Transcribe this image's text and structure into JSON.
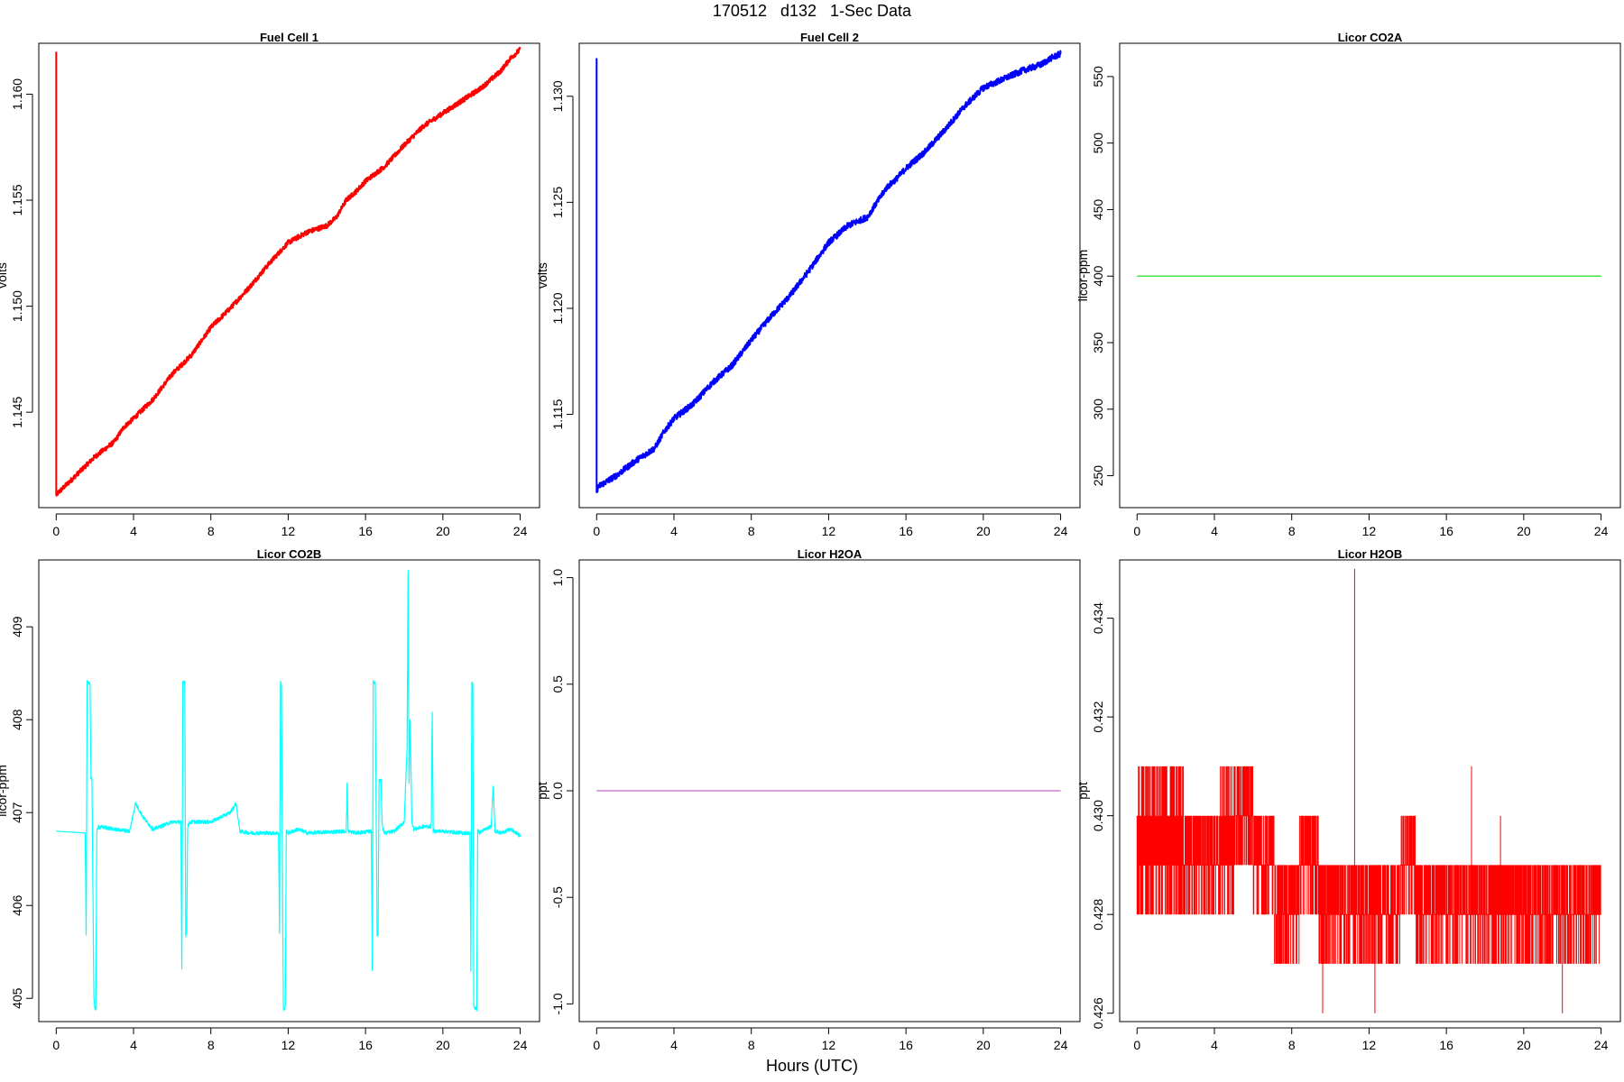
{
  "title": "170512   d132   1-Sec Data",
  "x_axis_label": "Hours (UTC)",
  "chart_data": [
    {
      "id": "fuel-cell-1",
      "type": "line",
      "title": "Fuel Cell 1",
      "xlabel": "",
      "ylabel": "volts",
      "color": "#ff0000",
      "xlim": [
        -0.9,
        25.0
      ],
      "ylim": [
        1.1405,
        1.1624
      ],
      "xticks": [
        0,
        4,
        8,
        12,
        16,
        20,
        24
      ],
      "yticks": [
        1.145,
        1.15,
        1.155,
        1.16
      ],
      "ytick_labels": [
        "1.145",
        "1.150",
        "1.155",
        "1.160"
      ],
      "noise": 0.00012,
      "series": [
        {
          "x": [
            0,
            0,
            0.1,
            1,
            2,
            3,
            3.5,
            4,
            5,
            6,
            7,
            8,
            9,
            10,
            11,
            12,
            13,
            14,
            14.5,
            15,
            15.5,
            16,
            17,
            18,
            19,
            20,
            21,
            22,
            23,
            23.5,
            24
          ],
          "y": [
            1.162,
            1.1411,
            1.1412,
            1.142,
            1.1429,
            1.1436,
            1.1443,
            1.1447,
            1.1456,
            1.1468,
            1.1477,
            1.149,
            1.1499,
            1.1509,
            1.152,
            1.153,
            1.1535,
            1.1538,
            1.1542,
            1.155,
            1.1554,
            1.1559,
            1.1566,
            1.1576,
            1.1585,
            1.1591,
            1.1597,
            1.1603,
            1.1611,
            1.1617,
            1.1621
          ]
        }
      ]
    },
    {
      "id": "fuel-cell-2",
      "type": "line",
      "title": "Fuel Cell 2",
      "xlabel": "",
      "ylabel": "volts",
      "color": "#0000ff",
      "xlim": [
        -0.9,
        25.0
      ],
      "ylim": [
        1.1106,
        1.1325
      ],
      "xticks": [
        0,
        4,
        8,
        12,
        16,
        20,
        24
      ],
      "yticks": [
        1.115,
        1.12,
        1.125,
        1.13
      ],
      "ytick_labels": [
        "1.115",
        "1.120",
        "1.125",
        "1.130"
      ],
      "noise": 0.00015,
      "series": [
        {
          "x": [
            0,
            0,
            0.1,
            1,
            2,
            3,
            3.5,
            4,
            5,
            6,
            7,
            8,
            9,
            10,
            11,
            12,
            13,
            14,
            14.5,
            15,
            15.5,
            16,
            17,
            18,
            19,
            20,
            21,
            22,
            23,
            23.5,
            24
          ],
          "y": [
            1.1318,
            1.1114,
            1.1116,
            1.1121,
            1.1128,
            1.1134,
            1.1142,
            1.1148,
            1.1155,
            1.1165,
            1.1173,
            1.1185,
            1.1196,
            1.1206,
            1.1218,
            1.1231,
            1.1239,
            1.1243,
            1.125,
            1.1257,
            1.1261,
            1.1266,
            1.1274,
            1.1284,
            1.1295,
            1.1304,
            1.1308,
            1.1312,
            1.1315,
            1.1318,
            1.132
          ]
        }
      ]
    },
    {
      "id": "licor-co2a",
      "type": "line",
      "title": "Licor CO2A",
      "xlabel": "",
      "ylabel": "licor-ppm",
      "color": "#00dd00",
      "xlim": [
        -0.9,
        25.0
      ],
      "ylim": [
        226,
        575
      ],
      "xticks": [
        0,
        4,
        8,
        12,
        16,
        20,
        24
      ],
      "yticks": [
        250,
        300,
        350,
        400,
        450,
        500,
        550
      ],
      "ytick_labels": [
        "250",
        "300",
        "350",
        "400",
        "450",
        "500",
        "550"
      ],
      "noise": 0,
      "series": [
        {
          "x": [
            0,
            24
          ],
          "y": [
            400,
            400
          ]
        }
      ]
    },
    {
      "id": "licor-co2b",
      "type": "line",
      "title": "Licor CO2B",
      "xlabel": "",
      "ylabel": "licor-ppm",
      "color": "#00ffff",
      "xlim": [
        -0.9,
        25.0
      ],
      "ylim": [
        404.75,
        409.72
      ],
      "xticks": [
        0,
        4,
        8,
        12,
        16,
        20,
        24
      ],
      "yticks": [
        405,
        406,
        407,
        408,
        409
      ],
      "ytick_labels": [
        "405",
        "406",
        "407",
        "408",
        "409"
      ],
      "noise": 0.02,
      "series": [
        {
          "x": [
            0,
            1.5,
            1.55,
            1.6,
            1.65,
            1.75,
            1.8,
            1.85,
            1.95,
            2.0,
            2.05,
            2.1,
            2.2,
            2.25,
            2.3,
            3,
            3.8,
            4.1,
            4.5,
            5,
            6,
            6.45,
            6.5,
            6.55,
            6.6,
            6.65,
            6.7,
            6.75,
            6.8,
            6.85,
            7,
            8,
            9,
            9.3,
            9.5,
            10,
            11.5,
            11.55,
            11.6,
            11.65,
            11.75,
            11.8,
            11.85,
            11.9,
            12.0,
            12.5,
            13,
            15.0,
            15.05,
            15.1,
            15.5,
            16.3,
            16.35,
            16.4,
            16.5,
            16.6,
            16.65,
            16.7,
            16.8,
            16.85,
            16.9,
            17,
            17.5,
            18,
            18.15,
            18.2,
            18.25,
            18.3,
            18.4,
            18.5,
            19,
            19.4,
            19.45,
            19.5,
            19.6,
            20,
            21,
            21.4,
            21.45,
            21.5,
            21.55,
            21.6,
            21.7,
            21.75,
            21.8,
            21.85,
            21.9,
            22,
            22.5,
            22.6,
            22.7,
            23,
            23.5,
            24
          ],
          "y": [
            406.8,
            406.78,
            405.68,
            408.4,
            408.4,
            408.38,
            407.35,
            407.38,
            405.0,
            404.9,
            404.88,
            406.8,
            406.85,
            406.83,
            406.85,
            406.82,
            406.8,
            407.1,
            406.95,
            406.82,
            406.9,
            406.9,
            405.3,
            408.4,
            408.42,
            408.4,
            405.68,
            405.7,
            406.85,
            406.88,
            406.9,
            406.9,
            407.0,
            407.1,
            406.8,
            406.78,
            406.78,
            405.7,
            408.4,
            408.38,
            404.9,
            404.88,
            404.9,
            406.8,
            406.78,
            406.82,
            406.78,
            406.8,
            407.3,
            406.8,
            406.78,
            406.8,
            405.3,
            408.4,
            408.4,
            405.68,
            405.68,
            407.35,
            407.35,
            406.9,
            406.82,
            406.78,
            406.8,
            406.9,
            407.7,
            409.6,
            407.3,
            408.0,
            406.9,
            406.82,
            406.85,
            406.85,
            408.1,
            406.8,
            406.8,
            406.8,
            406.78,
            406.78,
            405.3,
            408.4,
            408.38,
            404.9,
            404.9,
            404.88,
            406.8,
            406.8,
            406.78,
            406.8,
            406.85,
            407.3,
            406.8,
            406.78,
            406.82,
            406.75
          ]
        }
      ]
    },
    {
      "id": "licor-h2oa",
      "type": "line",
      "title": "Licor H2OA",
      "xlabel": "",
      "ylabel": "ppt",
      "color": "#cc66cc",
      "xlim": [
        -0.9,
        25.0
      ],
      "ylim": [
        -1.083,
        1.083
      ],
      "xticks": [
        0,
        4,
        8,
        12,
        16,
        20,
        24
      ],
      "yticks": [
        -1,
        -0.5,
        0,
        0.5,
        1
      ],
      "ytick_labels": [
        "-1.0",
        "-0.5",
        "0.0",
        "0.5",
        "1.0"
      ],
      "noise": 0,
      "series": [
        {
          "x": [
            0,
            24
          ],
          "y": [
            0,
            0
          ]
        }
      ]
    },
    {
      "id": "licor-h2ob",
      "type": "line",
      "title": "Licor H2OB",
      "xlabel": "",
      "ylabel": "ppt",
      "color": "#ff0000",
      "xlim": [
        -0.9,
        25.0
      ],
      "ylim": [
        0.42583,
        0.43518
      ],
      "xticks": [
        0,
        4,
        8,
        12,
        16,
        20,
        24
      ],
      "yticks": [
        0.426,
        0.428,
        0.43,
        0.432,
        0.434
      ],
      "ytick_labels": [
        "0.426",
        "0.428",
        "0.430",
        "0.432",
        "0.434"
      ],
      "quantized": true,
      "spikes": [
        {
          "x": 11.25,
          "y": 0.435
        },
        {
          "x": 9.6,
          "y": 0.426
        },
        {
          "x": 12.3,
          "y": 0.426
        },
        {
          "x": 22.0,
          "y": 0.426
        },
        {
          "x": 17.3,
          "y": 0.431
        },
        {
          "x": 18.8,
          "y": 0.43
        }
      ],
      "bands": [
        {
          "x0": 0.0,
          "x1": 2.4,
          "low": 0.428,
          "high": 0.431
        },
        {
          "x0": 2.4,
          "x1": 4.3,
          "low": 0.428,
          "high": 0.43
        },
        {
          "x0": 4.3,
          "x1": 5.0,
          "low": 0.428,
          "high": 0.431
        },
        {
          "x0": 5.0,
          "x1": 6.0,
          "low": 0.429,
          "high": 0.431
        },
        {
          "x0": 6.0,
          "x1": 7.1,
          "low": 0.428,
          "high": 0.43
        },
        {
          "x0": 7.1,
          "x1": 8.4,
          "low": 0.427,
          "high": 0.429
        },
        {
          "x0": 8.4,
          "x1": 9.4,
          "low": 0.428,
          "high": 0.43
        },
        {
          "x0": 9.4,
          "x1": 11.6,
          "low": 0.427,
          "high": 0.429
        },
        {
          "x0": 11.6,
          "x1": 13.6,
          "low": 0.427,
          "high": 0.429
        },
        {
          "x0": 13.6,
          "x1": 14.4,
          "low": 0.428,
          "high": 0.43
        },
        {
          "x0": 14.4,
          "x1": 24.0,
          "low": 0.427,
          "high": 0.429
        }
      ]
    }
  ]
}
